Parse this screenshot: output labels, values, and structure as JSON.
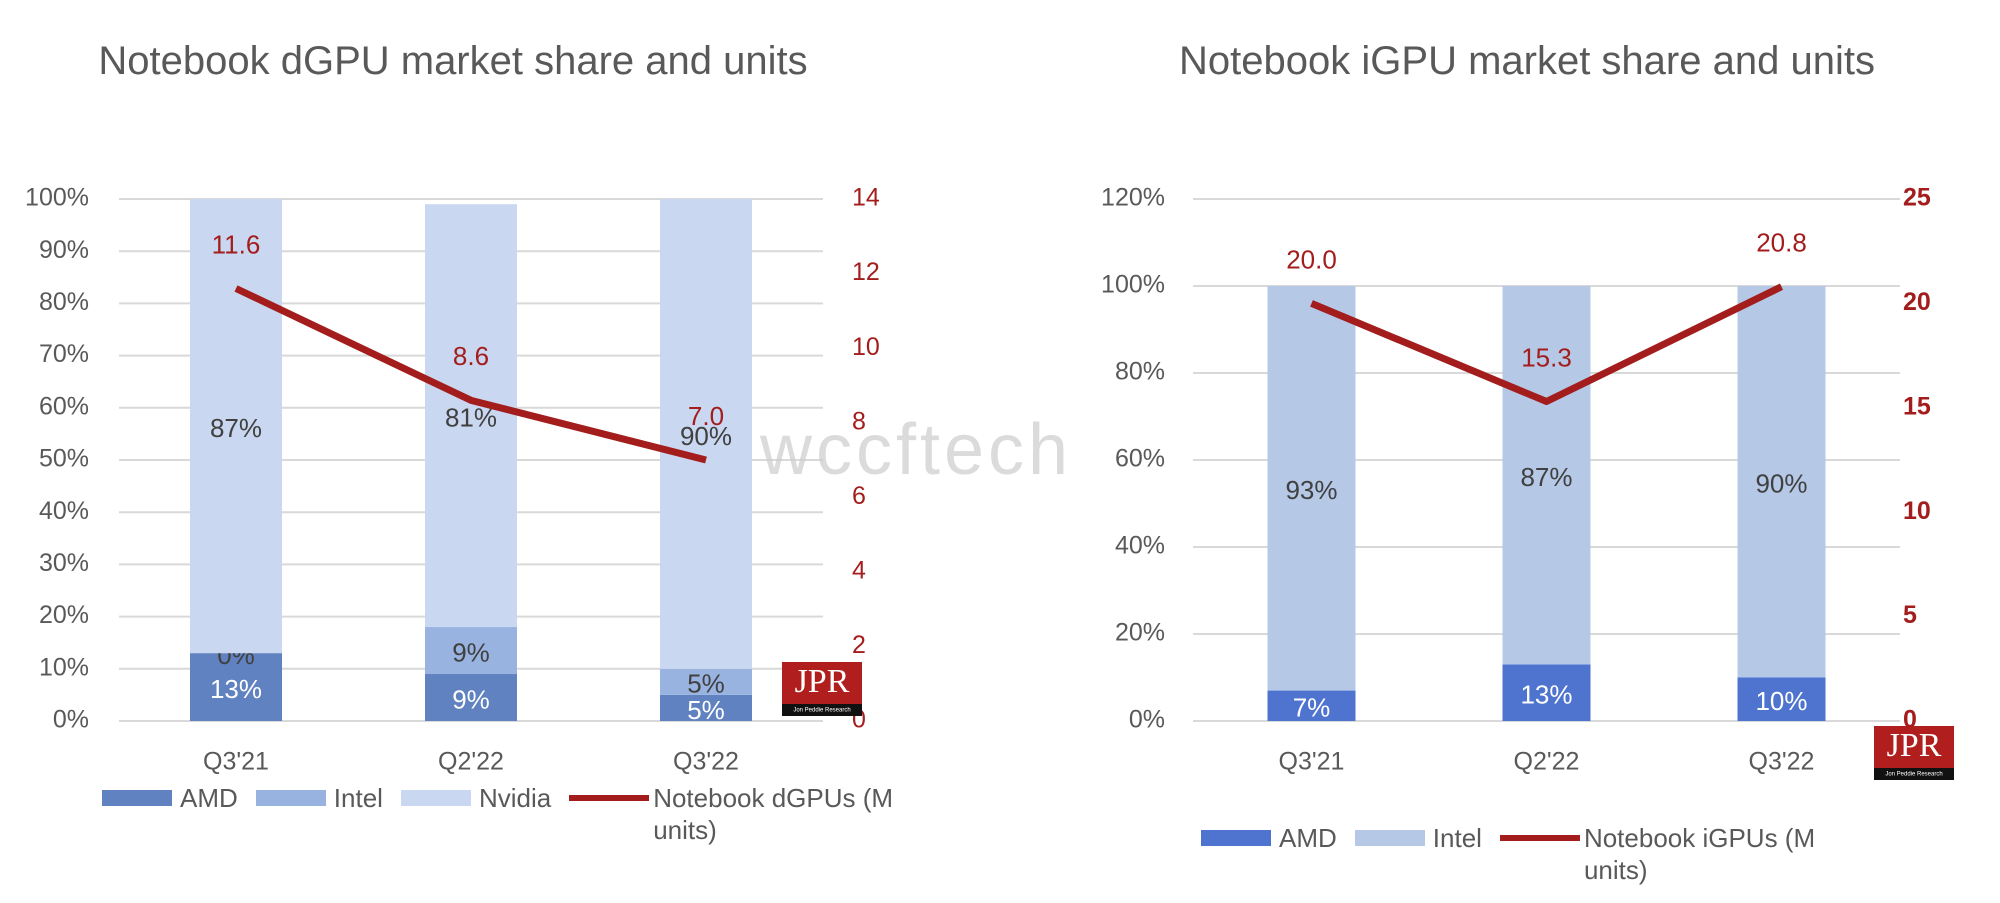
{
  "chart_data": [
    {
      "type": "bar",
      "stacked": true,
      "title": "Notebook dGPU market share and units",
      "categories": [
        "Q3'21",
        "Q2'22",
        "Q3'22"
      ],
      "series": [
        {
          "name": "AMD",
          "color": "#6082c0",
          "values": [
            13,
            9,
            5
          ],
          "value_labels": [
            "13%",
            "9%",
            "5%"
          ]
        },
        {
          "name": "Intel",
          "color": "#98b3e0",
          "values": [
            0,
            9,
            5
          ],
          "value_labels": [
            "0%",
            "9%",
            "5%"
          ]
        },
        {
          "name": "Nvidia",
          "color": "#c9d7f0",
          "values": [
            87,
            81,
            90
          ],
          "value_labels": [
            "87%",
            "81%",
            "90%"
          ]
        },
        {
          "name": "Notebook dGPUs (M units)",
          "type": "line",
          "axis": "y2",
          "color": "#a31d1d",
          "values": [
            11.6,
            8.6,
            7.0
          ],
          "value_labels": [
            "11.6",
            "8.6",
            "7.0"
          ]
        }
      ],
      "ylim": [
        0,
        100
      ],
      "yticks": [
        {
          "value": 0,
          "label": "0%"
        },
        {
          "value": 10,
          "label": "10%"
        },
        {
          "value": 20,
          "label": "20%"
        },
        {
          "value": 30,
          "label": "30%"
        },
        {
          "value": 40,
          "label": "40%"
        },
        {
          "value": 50,
          "label": "50%"
        },
        {
          "value": 60,
          "label": "60%"
        },
        {
          "value": 70,
          "label": "70%"
        },
        {
          "value": 80,
          "label": "80%"
        },
        {
          "value": 90,
          "label": "90%"
        },
        {
          "value": 100,
          "label": "100%"
        }
      ],
      "y2lim": [
        0,
        14
      ],
      "y2ticks": [
        0,
        2,
        4,
        6,
        8,
        10,
        12,
        14
      ],
      "grid": true,
      "legend": "bottom",
      "logo": "JPR",
      "logo_caption": "Jon Peddie Research",
      "watermark": "wccftech"
    },
    {
      "type": "bar",
      "stacked": true,
      "title": "Notebook iGPU market share and units",
      "categories": [
        "Q3'21",
        "Q2'22",
        "Q3'22"
      ],
      "series": [
        {
          "name": "AMD",
          "color": "#4f74cf",
          "values": [
            7,
            13,
            10
          ],
          "value_labels": [
            "7%",
            "13%",
            "10%"
          ]
        },
        {
          "name": "Intel",
          "color": "#b5c8e6",
          "values": [
            93,
            87,
            90
          ],
          "value_labels": [
            "93%",
            "87%",
            "90%"
          ]
        },
        {
          "name": "Notebook iGPUs (M units)",
          "type": "line",
          "axis": "y2",
          "color": "#a31d1d",
          "values": [
            20.0,
            15.3,
            20.8
          ],
          "value_labels": [
            "20.0",
            "15.3",
            "20.8"
          ]
        }
      ],
      "ylim": [
        0,
        120
      ],
      "yticks": [
        {
          "value": 0,
          "label": "0%"
        },
        {
          "value": 20,
          "label": "20%"
        },
        {
          "value": 40,
          "label": "40%"
        },
        {
          "value": 60,
          "label": "60%"
        },
        {
          "value": 80,
          "label": "80%"
        },
        {
          "value": 100,
          "label": "100%"
        },
        {
          "value": 120,
          "label": "120%"
        }
      ],
      "y2lim": [
        0,
        25
      ],
      "y2ticks": [
        0,
        5,
        10,
        15,
        20,
        25
      ],
      "grid": true,
      "legend": "bottom",
      "logo": "JPR",
      "logo_caption": "Jon Peddie Research"
    }
  ]
}
